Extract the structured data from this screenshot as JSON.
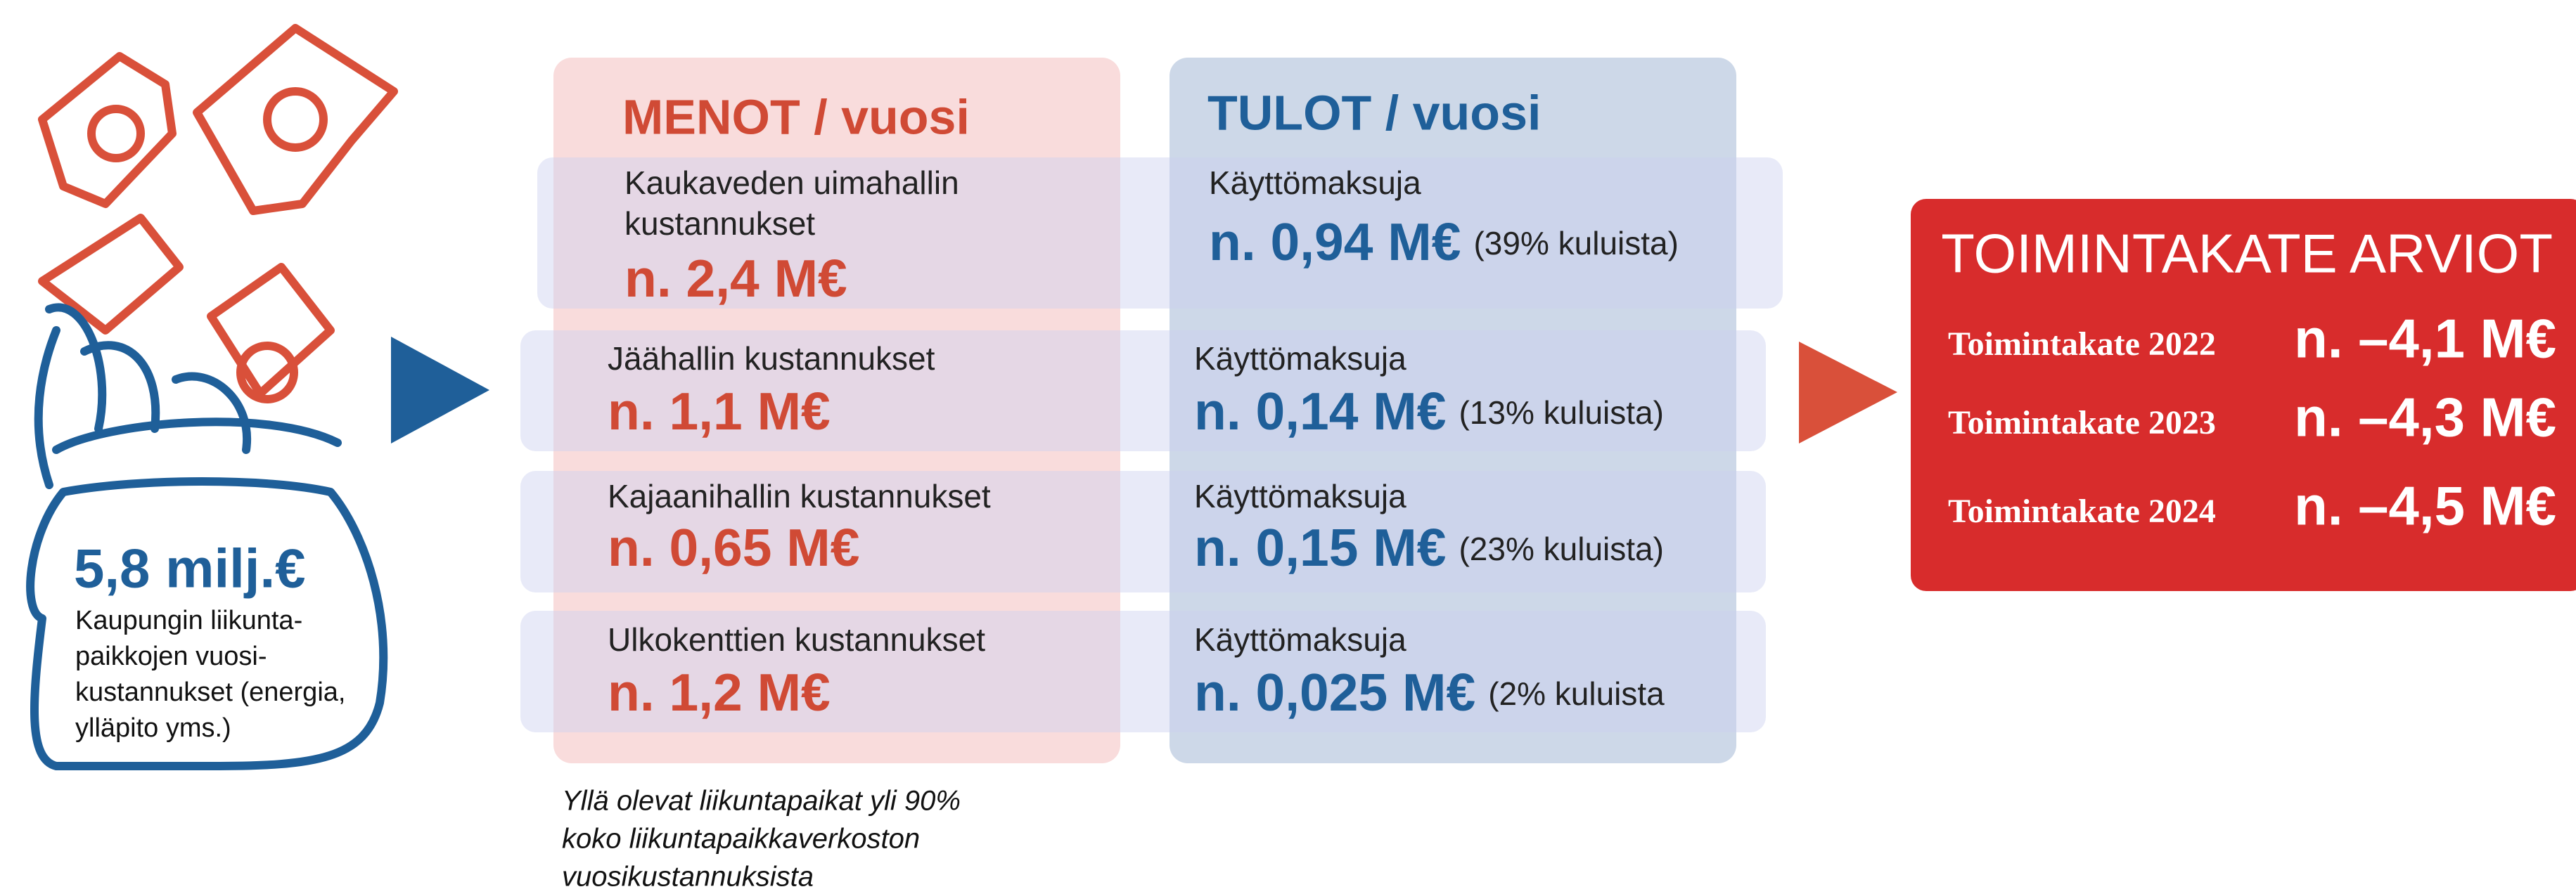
{
  "bag": {
    "amount": "5,8 milj.€",
    "description": [
      "Kaupungin liikunta-",
      "paikkojen vuosi-",
      "kustannukset (energia,",
      "ylläpito yms.)"
    ]
  },
  "menot": {
    "header": "MENOT / vuosi"
  },
  "tulot": {
    "header": "TULOT / vuosi"
  },
  "rows": [
    {
      "cost_label": [
        "Kaukaveden uimahallin",
        "kustannukset"
      ],
      "cost_value": "n. 2,4 M€",
      "income_label": "Käyttömaksuja",
      "income_value": "n. 0,94 M€",
      "income_share": "(39% kuluista)"
    },
    {
      "cost_label": [
        "Jäähallin kustannukset"
      ],
      "cost_value": "n. 1,1 M€",
      "income_label": "Käyttömaksuja",
      "income_value": "n. 0,14 M€",
      "income_share": "(13% kuluista)"
    },
    {
      "cost_label": [
        "Kajaanihallin kustannukset"
      ],
      "cost_value": "n. 0,65 M€",
      "income_label": "Käyttömaksuja",
      "income_value": "n. 0,15 M€",
      "income_share": "(23% kuluista)"
    },
    {
      "cost_label": [
        "Ulkokenttien kustannukset"
      ],
      "cost_value": "n. 1,2 M€",
      "income_label": "Käyttömaksuja",
      "income_value": "n. 0,025 M€",
      "income_share": "(2% kuluista"
    }
  ],
  "note": [
    "Yllä olevat liikuntapaikat yli 90%",
    "koko liikuntapaikkaverkoston",
    "vuosikustannuksista"
  ],
  "summary": {
    "title": "TOIMINTAKATE ARVIOT",
    "items": [
      {
        "label": "Toimintakate 2022",
        "value": "n. –4,1 M€"
      },
      {
        "label": "Toimintakate 2023",
        "value": "n. –4,3 M€"
      },
      {
        "label": "Toimintakate 2024",
        "value": "n. –4,5 M€"
      }
    ]
  }
}
